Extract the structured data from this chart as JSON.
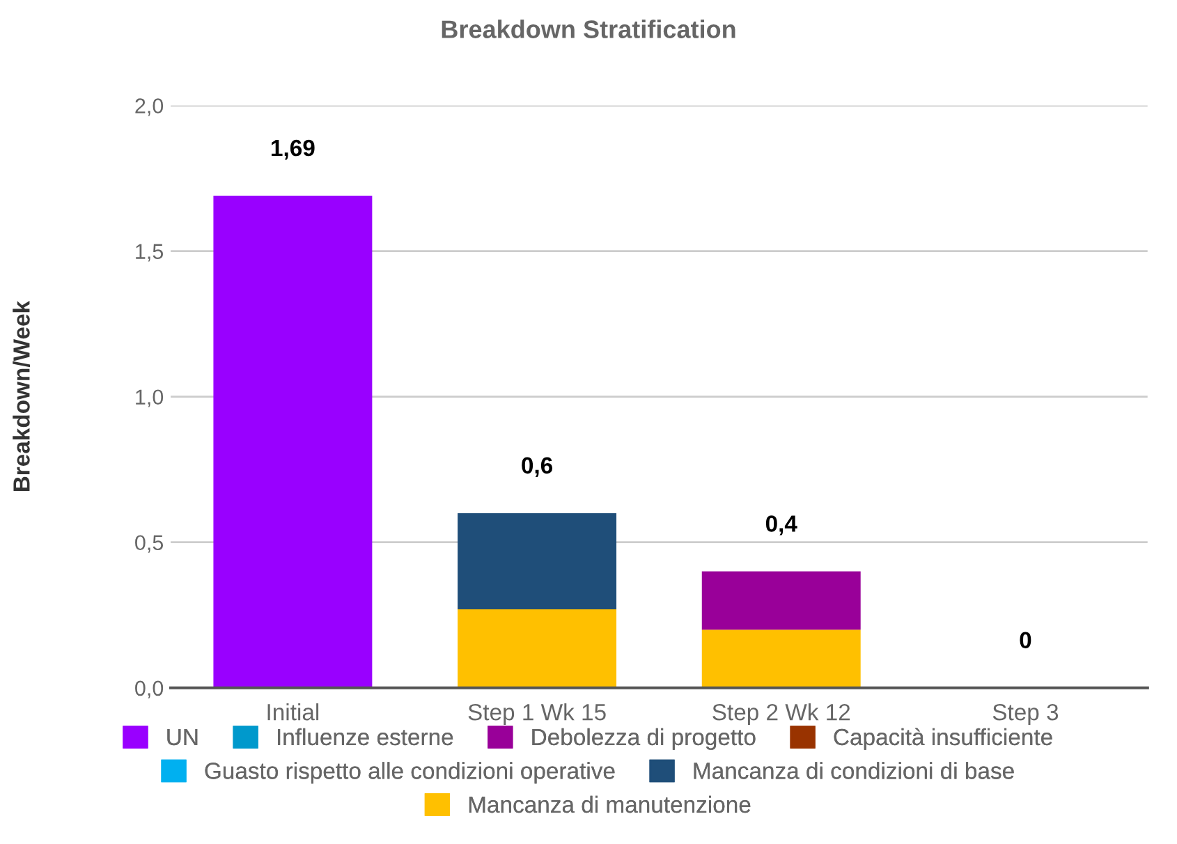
{
  "chart_data": {
    "type": "bar",
    "title": "Breakdown Stratification",
    "ylabel": "Breakdown/Week",
    "categories": [
      "Initial",
      "Step 1 Wk 15",
      "Step 2 Wk 12",
      "Step 3"
    ],
    "stacked": true,
    "series": [
      {
        "name": "Mancanza di manutenzione",
        "color": "#ffc000",
        "values": [
          0,
          0.27,
          0.2,
          0
        ]
      },
      {
        "name": "Mancanza di condizioni di base",
        "color": "#1f4e79",
        "values": [
          0,
          0.33,
          0,
          0
        ]
      },
      {
        "name": "Guasto rispetto alle condizioni operative",
        "color": "#00b0f0",
        "values": [
          0,
          0,
          0,
          0
        ]
      },
      {
        "name": "Capacità insufficiente",
        "color": "#993300",
        "values": [
          0,
          0,
          0,
          0
        ]
      },
      {
        "name": "Debolezza di progetto",
        "color": "#990099",
        "values": [
          0,
          0,
          0.2,
          0
        ]
      },
      {
        "name": "Influenze esterne",
        "color": "#0099cc",
        "values": [
          0,
          0,
          0,
          0
        ]
      },
      {
        "name": "UN",
        "color": "#9900ff",
        "values": [
          1.69,
          0,
          0,
          0
        ]
      }
    ],
    "totals": [
      "1,69",
      "0,6",
      "0,4",
      "0"
    ],
    "ylim": [
      0,
      2
    ],
    "yticks": [
      {
        "value": 0,
        "label": "0,0"
      },
      {
        "value": 0.5,
        "label": "0,5"
      },
      {
        "value": 1,
        "label": "1,0"
      },
      {
        "value": 1.5,
        "label": "1,5"
      },
      {
        "value": 2,
        "label": "2,0"
      }
    ],
    "grid": "y",
    "legend": "bottom"
  }
}
